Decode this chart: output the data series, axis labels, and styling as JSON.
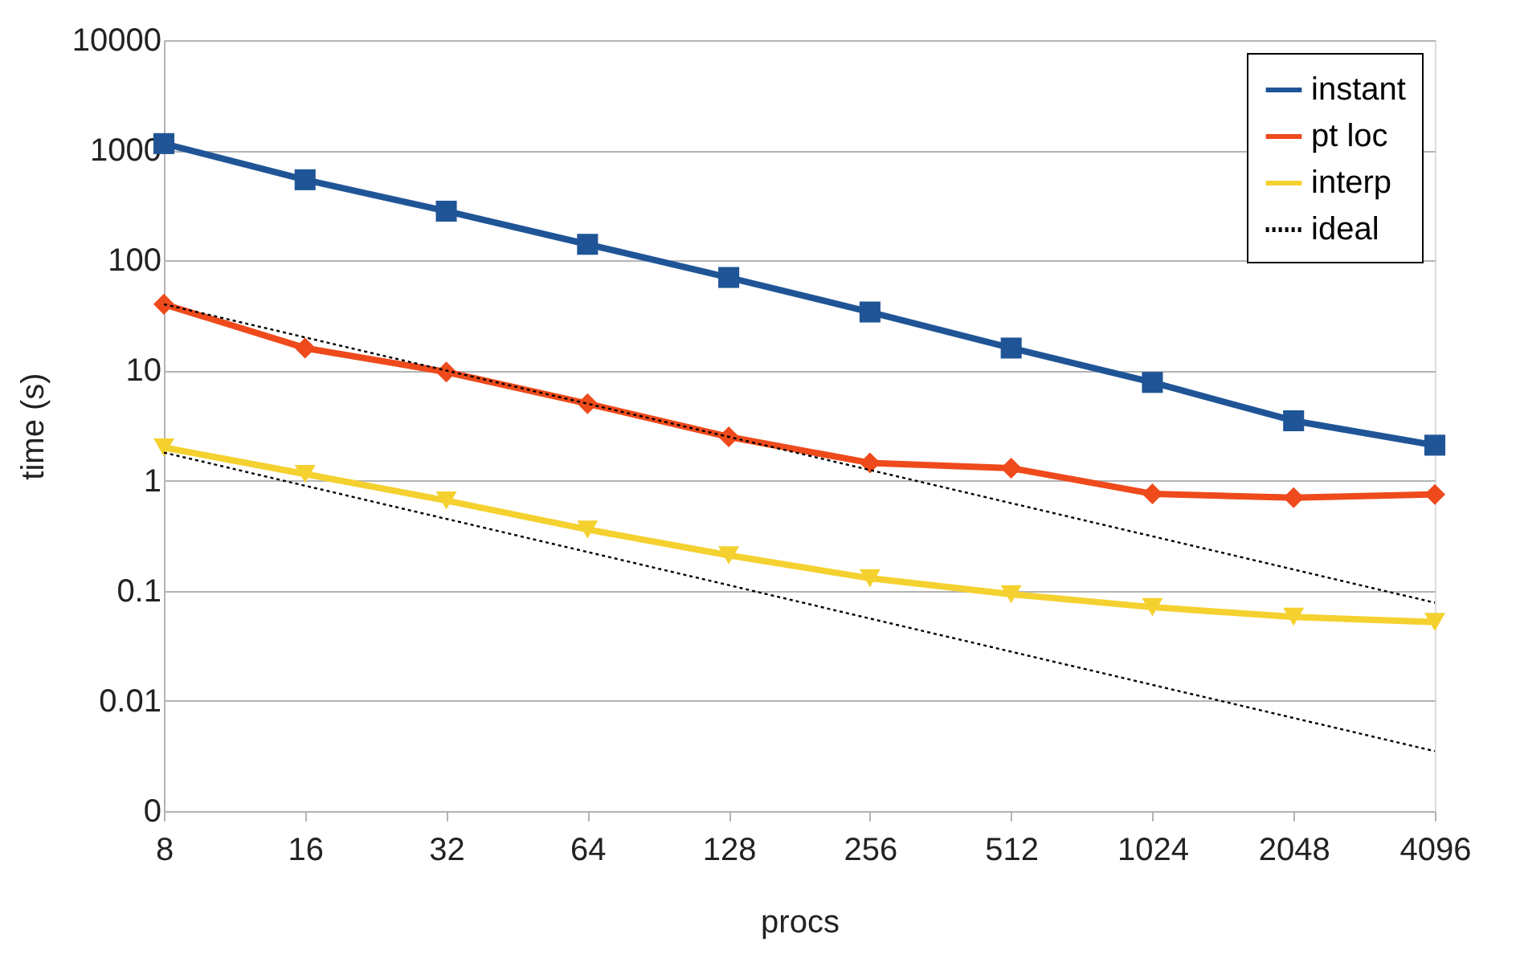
{
  "chart_data": {
    "type": "line",
    "xlabel": "procs",
    "ylabel": "time (s)",
    "categories": [
      "8",
      "16",
      "32",
      "64",
      "128",
      "256",
      "512",
      "1024",
      "2048",
      "4096"
    ],
    "series": [
      {
        "name": "instant",
        "color": "#1f5597",
        "marker": "square",
        "line_style": "solid",
        "values": [
          1150,
          540,
          280,
          140,
          70,
          34,
          16,
          7.8,
          3.5,
          2.1
        ]
      },
      {
        "name": "pt loc",
        "color": "#ee4a1c",
        "marker": "diamond",
        "line_style": "solid",
        "values": [
          40,
          16,
          9.7,
          5,
          2.5,
          1.45,
          1.3,
          0.76,
          0.7,
          0.75
        ]
      },
      {
        "name": "interp",
        "color": "#f5d130",
        "marker": "triangle",
        "line_style": "solid",
        "values": [
          2,
          1.15,
          0.66,
          0.36,
          0.21,
          0.13,
          0.093,
          0.071,
          0.058,
          0.052
        ]
      },
      {
        "name": "ideal",
        "color": "#000000",
        "marker": "none",
        "line_style": "dotted",
        "values": [
          40,
          20,
          10,
          5,
          2.5,
          1.25,
          0.625,
          0.3125,
          0.156,
          0.078
        ]
      },
      {
        "color": "#000000",
        "marker": "none",
        "line_style": "dotted",
        "values": [
          1.8,
          0.9,
          0.45,
          0.225,
          0.1125,
          0.056,
          0.028,
          0.014,
          0.007,
          0.0035
        ]
      }
    ],
    "log": true,
    "ylim": [
      0.001,
      10000
    ],
    "yticks": [
      {
        "value": 0.001,
        "label": "0"
      },
      0.01,
      0.1,
      1,
      10,
      100,
      1000,
      10000
    ],
    "grid": "y",
    "legend": "top right"
  }
}
